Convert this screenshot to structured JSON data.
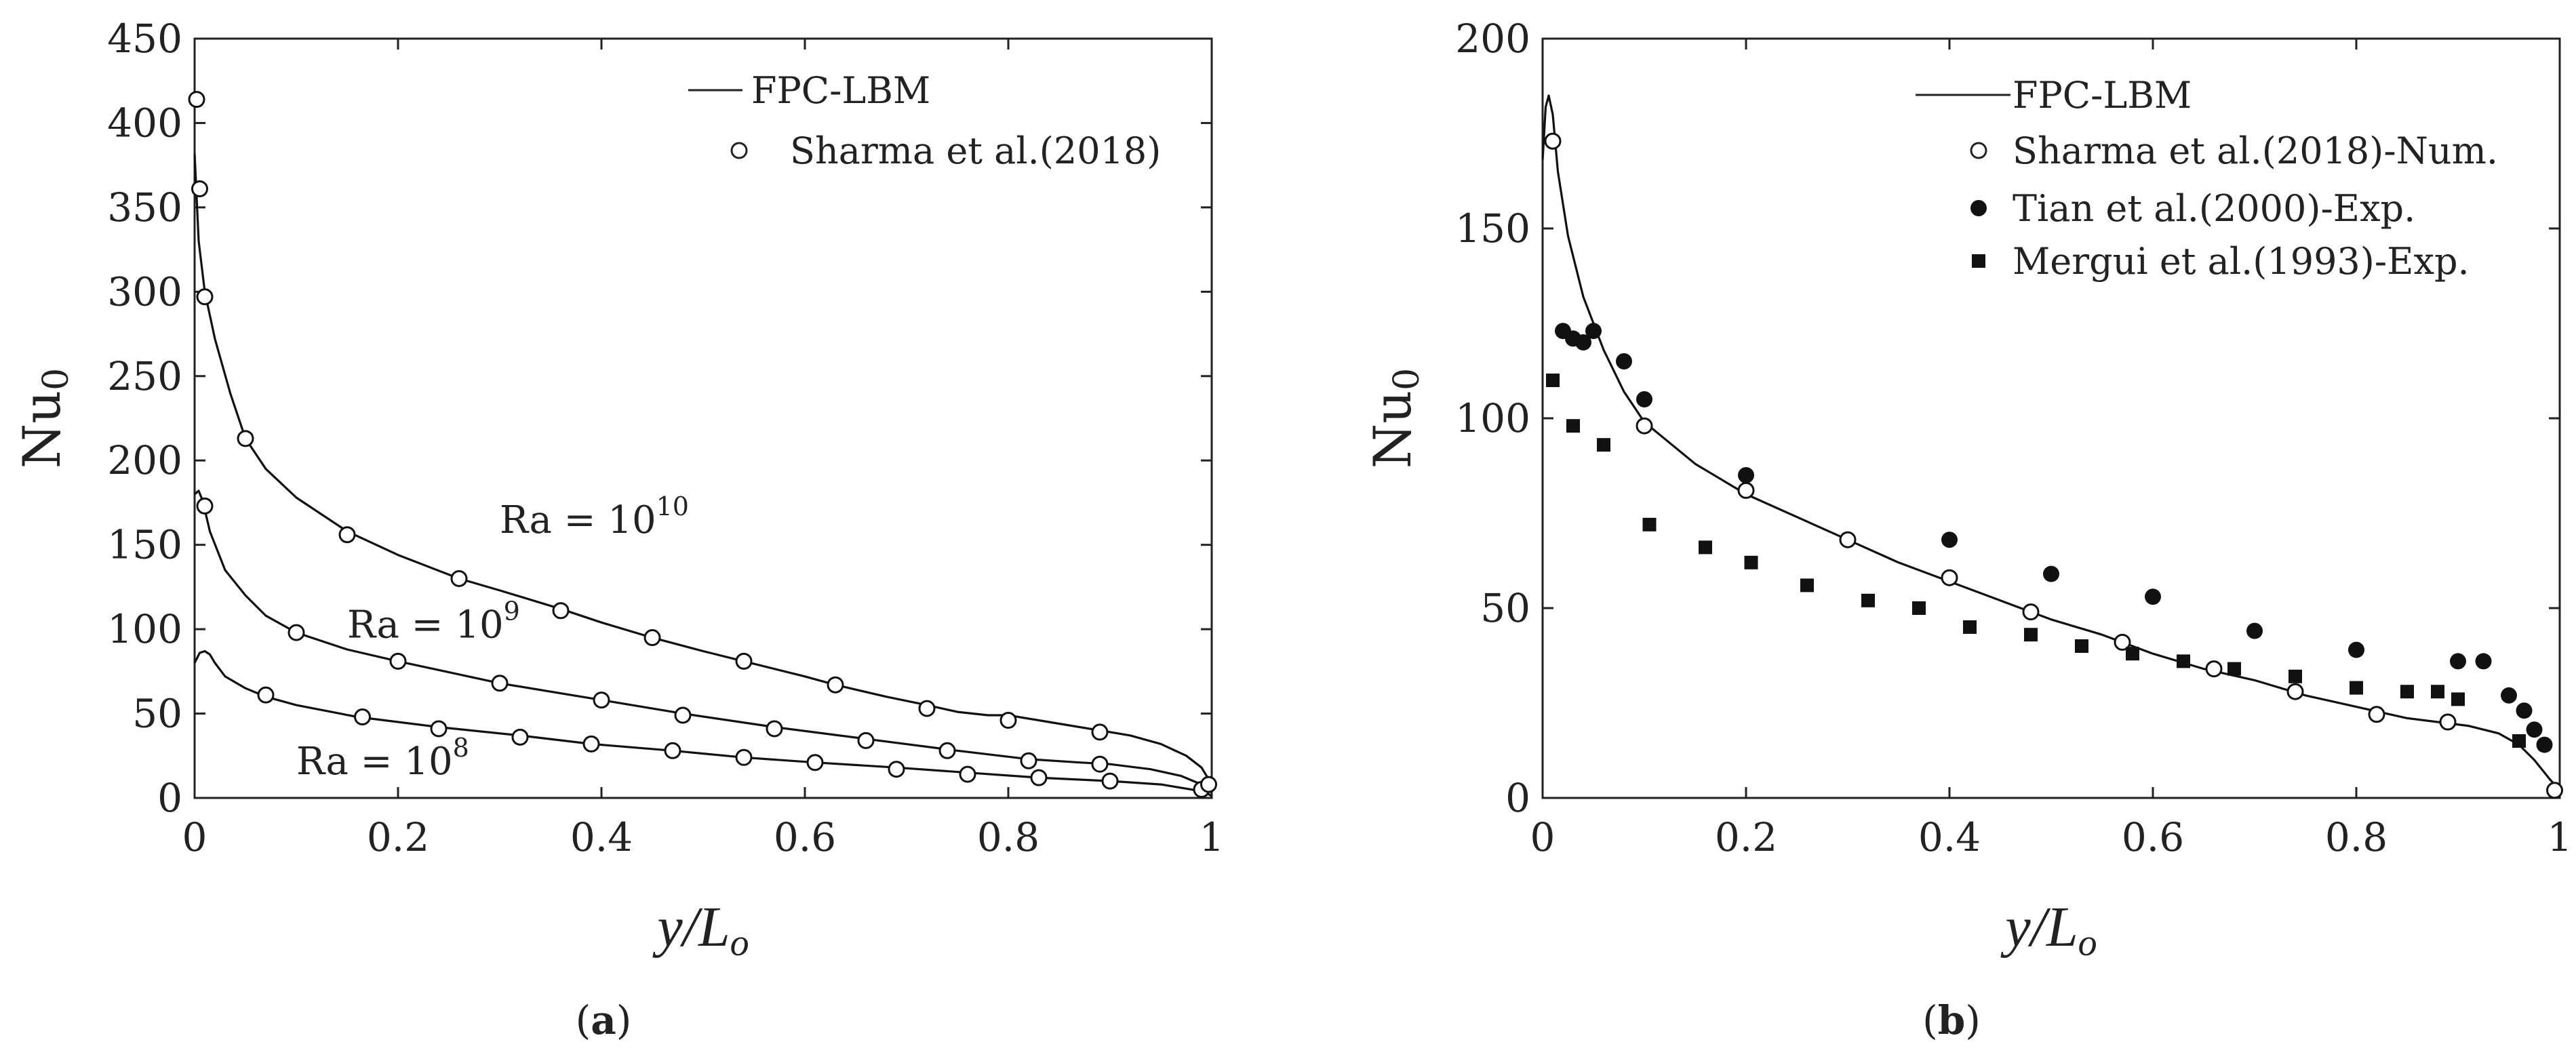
{
  "chart_data": [
    {
      "id": "a",
      "type": "line",
      "title": "",
      "caption_open": "(",
      "caption_letter": "a",
      "caption_close": ")",
      "xlabel": "y/L_o",
      "xlabel_main": "y/L",
      "xlabel_sub": "o",
      "ylabel": "Nu_0",
      "ylabel_main": "Nu",
      "ylabel_sub": "0",
      "xlim": [
        0,
        1
      ],
      "ylim": [
        0,
        450
      ],
      "xticks": [
        0,
        0.2,
        0.4,
        0.6,
        0.8,
        1
      ],
      "xtick_labels": [
        "0",
        "0.2",
        "0.4",
        "0.6",
        "0.8",
        "1"
      ],
      "yticks": [
        0,
        50,
        100,
        150,
        200,
        250,
        300,
        350,
        400,
        450
      ],
      "ytick_labels": [
        "0",
        "50",
        "100",
        "150",
        "200",
        "250",
        "300",
        "350",
        "400",
        "450"
      ],
      "legend_position": "top-right",
      "legend": [
        {
          "label": "FPC-LBM",
          "marker": "line"
        },
        {
          "label": "Sharma et al.(2018)",
          "marker": "open-circle"
        }
      ],
      "annotations": [
        {
          "base": "Ra = 10",
          "exp": "10",
          "x": 0.3,
          "y": 157
        },
        {
          "base": "Ra = 10",
          "exp": "9",
          "x": 0.15,
          "y": 95
        },
        {
          "base": "Ra = 10",
          "exp": "8",
          "x": 0.1,
          "y": 14
        }
      ],
      "series": [
        {
          "name": "FPC-LBM Ra=1e10",
          "kind": "line",
          "points": [
            [
              0.0,
              382
            ],
            [
              0.004,
              330
            ],
            [
              0.01,
              300
            ],
            [
              0.02,
              272
            ],
            [
              0.035,
              240
            ],
            [
              0.05,
              213
            ],
            [
              0.07,
              195
            ],
            [
              0.1,
              178
            ],
            [
              0.15,
              158
            ],
            [
              0.2,
              144
            ],
            [
              0.26,
              130
            ],
            [
              0.3,
              123
            ],
            [
              0.36,
              112
            ],
            [
              0.4,
              104
            ],
            [
              0.45,
              95
            ],
            [
              0.5,
              87
            ],
            [
              0.54,
              81
            ],
            [
              0.6,
              72
            ],
            [
              0.63,
              67
            ],
            [
              0.68,
              60
            ],
            [
              0.72,
              55
            ],
            [
              0.75,
              51
            ],
            [
              0.78,
              49
            ],
            [
              0.8,
              49
            ],
            [
              0.83,
              46
            ],
            [
              0.86,
              43
            ],
            [
              0.89,
              40
            ],
            [
              0.92,
              37
            ],
            [
              0.95,
              32
            ],
            [
              0.975,
              25
            ],
            [
              0.99,
              18
            ],
            [
              1.0,
              8
            ]
          ]
        },
        {
          "name": "FPC-LBM Ra=1e9",
          "kind": "line",
          "points": [
            [
              0.0,
              180
            ],
            [
              0.004,
              182
            ],
            [
              0.008,
              176
            ],
            [
              0.015,
              158
            ],
            [
              0.03,
              135
            ],
            [
              0.05,
              120
            ],
            [
              0.07,
              108
            ],
            [
              0.1,
              98
            ],
            [
              0.15,
              88
            ],
            [
              0.2,
              81
            ],
            [
              0.3,
              68
            ],
            [
              0.4,
              58
            ],
            [
              0.48,
              50
            ],
            [
              0.57,
              42
            ],
            [
              0.66,
              35
            ],
            [
              0.75,
              28
            ],
            [
              0.82,
              23
            ],
            [
              0.87,
              21
            ],
            [
              0.9,
              20
            ],
            [
              0.94,
              17
            ],
            [
              0.97,
              13
            ],
            [
              0.99,
              8
            ],
            [
              1.0,
              3
            ]
          ]
        },
        {
          "name": "FPC-LBM Ra=1e8",
          "kind": "line",
          "points": [
            [
              0.0,
              80
            ],
            [
              0.005,
              86
            ],
            [
              0.01,
              87
            ],
            [
              0.015,
              85
            ],
            [
              0.02,
              80
            ],
            [
              0.03,
              72
            ],
            [
              0.05,
              65
            ],
            [
              0.07,
              60
            ],
            [
              0.1,
              55
            ],
            [
              0.16,
              48
            ],
            [
              0.24,
              42
            ],
            [
              0.32,
              37
            ],
            [
              0.39,
              32
            ],
            [
              0.47,
              28
            ],
            [
              0.54,
              24
            ],
            [
              0.61,
              21
            ],
            [
              0.69,
              18
            ],
            [
              0.76,
              15
            ],
            [
              0.83,
              12
            ],
            [
              0.9,
              10
            ],
            [
              0.95,
              8
            ],
            [
              0.98,
              5
            ],
            [
              0.995,
              3
            ],
            [
              1.0,
              1
            ]
          ]
        },
        {
          "name": "Sharma et al.(2018) Ra=1e10",
          "kind": "open-circle",
          "points": [
            [
              0.002,
              414
            ],
            [
              0.005,
              361
            ],
            [
              0.01,
              297
            ],
            [
              0.05,
              213
            ],
            [
              0.15,
              156
            ],
            [
              0.26,
              130
            ],
            [
              0.36,
              111
            ],
            [
              0.45,
              95
            ],
            [
              0.54,
              81
            ],
            [
              0.63,
              67
            ],
            [
              0.72,
              53
            ],
            [
              0.8,
              46
            ],
            [
              0.89,
              39
            ],
            [
              0.99,
              5
            ],
            [
              0.997,
              8
            ]
          ]
        },
        {
          "name": "Sharma et al.(2018) Ra=1e9",
          "kind": "open-circle",
          "points": [
            [
              0.01,
              173
            ],
            [
              0.1,
              98
            ],
            [
              0.2,
              81
            ],
            [
              0.3,
              68
            ],
            [
              0.4,
              58
            ],
            [
              0.48,
              49
            ],
            [
              0.57,
              41
            ],
            [
              0.66,
              34
            ],
            [
              0.74,
              28
            ],
            [
              0.82,
              22
            ],
            [
              0.89,
              20
            ]
          ]
        },
        {
          "name": "Sharma et al.(2018) Ra=1e8",
          "kind": "open-circle",
          "points": [
            [
              0.07,
              61
            ],
            [
              0.165,
              48
            ],
            [
              0.24,
              41
            ],
            [
              0.32,
              36
            ],
            [
              0.39,
              32
            ],
            [
              0.47,
              28
            ],
            [
              0.54,
              24
            ],
            [
              0.61,
              21
            ],
            [
              0.69,
              17
            ],
            [
              0.76,
              14
            ],
            [
              0.83,
              12
            ],
            [
              0.9,
              10
            ]
          ]
        }
      ]
    },
    {
      "id": "b",
      "type": "line",
      "title": "",
      "caption_open": "(",
      "caption_letter": "b",
      "caption_close": ")",
      "xlabel": "y/L_o",
      "xlabel_main": "y/L",
      "xlabel_sub": "o",
      "ylabel": "Nu_0",
      "ylabel_main": "Nu",
      "ylabel_sub": "0",
      "xlim": [
        0,
        1
      ],
      "ylim": [
        0,
        200
      ],
      "xticks": [
        0,
        0.2,
        0.4,
        0.6,
        0.8,
        1
      ],
      "xtick_labels": [
        "0",
        "0.2",
        "0.4",
        "0.6",
        "0.8",
        "1"
      ],
      "yticks": [
        0,
        50,
        100,
        150,
        200
      ],
      "ytick_labels": [
        "0",
        "50",
        "100",
        "150",
        "200"
      ],
      "legend_position": "top-right",
      "legend": [
        {
          "label": "FPC-LBM",
          "marker": "line"
        },
        {
          "label": "Sharma et al.(2018)-Num.",
          "marker": "open-circle"
        },
        {
          "label": "Tian et al.(2000)-Exp.",
          "marker": "filled-circle"
        },
        {
          "label": "Mergui et al.(1993)-Exp.",
          "marker": "filled-square"
        }
      ],
      "annotations": [],
      "series": [
        {
          "name": "FPC-LBM",
          "kind": "line",
          "points": [
            [
              0.0,
              168
            ],
            [
              0.003,
              182
            ],
            [
              0.006,
              185
            ],
            [
              0.01,
              180
            ],
            [
              0.015,
              165
            ],
            [
              0.025,
              148
            ],
            [
              0.04,
              132
            ],
            [
              0.06,
              118
            ],
            [
              0.08,
              107
            ],
            [
              0.1,
              99
            ],
            [
              0.15,
              88
            ],
            [
              0.2,
              80
            ],
            [
              0.25,
              74
            ],
            [
              0.3,
              68
            ],
            [
              0.35,
              62
            ],
            [
              0.4,
              57
            ],
            [
              0.45,
              52
            ],
            [
              0.5,
              47
            ],
            [
              0.55,
              43
            ],
            [
              0.6,
              38
            ],
            [
              0.65,
              34
            ],
            [
              0.7,
              31
            ],
            [
              0.75,
              27
            ],
            [
              0.8,
              24
            ],
            [
              0.85,
              21
            ],
            [
              0.88,
              20
            ],
            [
              0.91,
              19
            ],
            [
              0.94,
              17
            ],
            [
              0.96,
              14
            ],
            [
              0.975,
              10
            ],
            [
              0.99,
              5
            ],
            [
              1.0,
              2
            ]
          ]
        },
        {
          "name": "Sharma et al.(2018)-Num.",
          "kind": "open-circle",
          "points": [
            [
              0.01,
              173
            ],
            [
              0.1,
              98
            ],
            [
              0.2,
              81
            ],
            [
              0.3,
              68
            ],
            [
              0.4,
              58
            ],
            [
              0.48,
              49
            ],
            [
              0.57,
              41
            ],
            [
              0.66,
              34
            ],
            [
              0.74,
              28
            ],
            [
              0.82,
              22
            ],
            [
              0.89,
              20
            ],
            [
              0.995,
              2
            ]
          ]
        },
        {
          "name": "Tian et al.(2000)-Exp.",
          "kind": "filled-circle",
          "points": [
            [
              0.02,
              123
            ],
            [
              0.03,
              121
            ],
            [
              0.04,
              120
            ],
            [
              0.05,
              123
            ],
            [
              0.08,
              115
            ],
            [
              0.1,
              105
            ],
            [
              0.2,
              85
            ],
            [
              0.4,
              68
            ],
            [
              0.5,
              59
            ],
            [
              0.6,
              53
            ],
            [
              0.7,
              44
            ],
            [
              0.8,
              39
            ],
            [
              0.9,
              36
            ],
            [
              0.925,
              36
            ],
            [
              0.95,
              27
            ],
            [
              0.965,
              23
            ],
            [
              0.975,
              18
            ],
            [
              0.985,
              14
            ]
          ]
        },
        {
          "name": "Mergui et al.(1993)-Exp.",
          "kind": "filled-square",
          "points": [
            [
              0.01,
              110
            ],
            [
              0.03,
              98
            ],
            [
              0.06,
              93
            ],
            [
              0.105,
              72
            ],
            [
              0.16,
              66
            ],
            [
              0.205,
              62
            ],
            [
              0.26,
              56
            ],
            [
              0.32,
              52
            ],
            [
              0.37,
              50
            ],
            [
              0.42,
              45
            ],
            [
              0.48,
              43
            ],
            [
              0.53,
              40
            ],
            [
              0.58,
              38
            ],
            [
              0.63,
              36
            ],
            [
              0.68,
              34
            ],
            [
              0.74,
              32
            ],
            [
              0.8,
              29
            ],
            [
              0.85,
              28
            ],
            [
              0.88,
              28
            ],
            [
              0.9,
              26
            ],
            [
              0.96,
              15
            ]
          ]
        }
      ]
    }
  ]
}
